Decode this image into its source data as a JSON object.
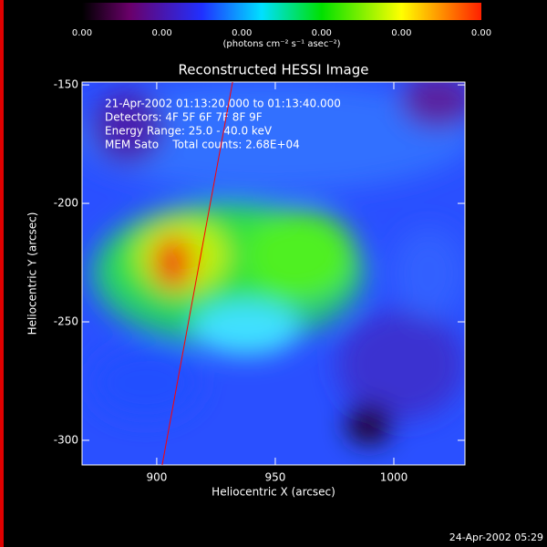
{
  "chart_data": {
    "type": "heatmap",
    "title": "Reconstructed HESSI Image",
    "annotations": [
      "21-Apr-2002 01:13:20.000 to 01:13:40.000",
      "Detectors: 4F 5F 6F 7F 8F 9F",
      "Energy Range: 25.0 - 40.0 keV",
      "MEM Sato    Total counts: 2.68E+04"
    ],
    "xlabel": "Heliocentric X (arcsec)",
    "ylabel": "Heliocentric Y (arcsec)",
    "xlim": [
      868.5,
      1030
    ],
    "xticks": [
      900,
      950,
      1000
    ],
    "ylim": [
      -310.4,
      -148.8
    ],
    "yticks": [
      -150,
      -200,
      -250,
      -300
    ],
    "colorbar": {
      "ticks": [
        "0.00",
        "0.00",
        "0.00",
        "0.00",
        "0.00",
        "0.00"
      ],
      "label": "(photons cm⁻² s⁻¹ asec⁻²)"
    },
    "lines": [
      {
        "color": "#ff0000",
        "x": [
          932,
          902.3
        ],
        "y": [
          -148.8,
          -310.4
        ]
      }
    ],
    "timestamp": "24-Apr-2002 05:29"
  }
}
